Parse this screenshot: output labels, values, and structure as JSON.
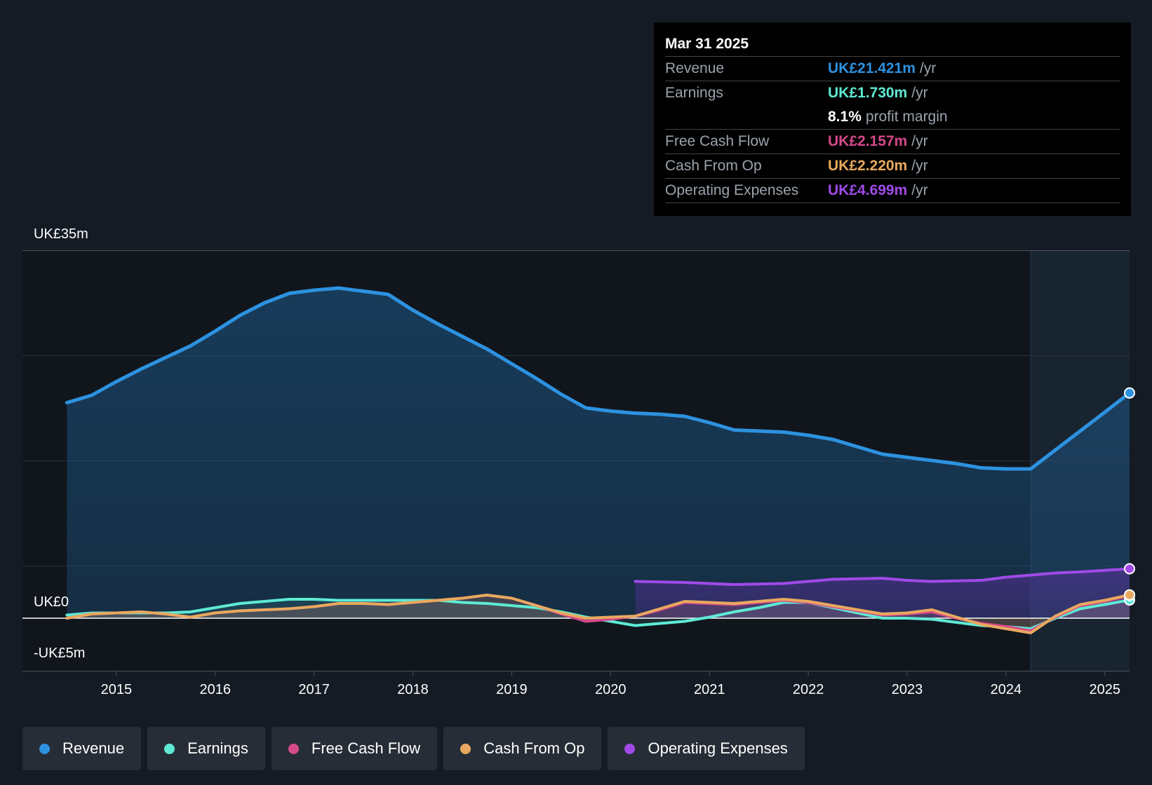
{
  "tooltip": {
    "date": "Mar 31 2025",
    "rows": [
      {
        "label": "Revenue",
        "value": "UK£21.421m",
        "unit": "/yr",
        "color": "#2d92e0"
      },
      {
        "label": "Earnings",
        "value": "UK£1.730m",
        "unit": "/yr",
        "color": "#5eead4"
      },
      {
        "label": "",
        "value": "8.1%",
        "unit": "profit margin",
        "color": "#ffffff"
      },
      {
        "label": "Free Cash Flow",
        "value": "UK£2.157m",
        "unit": "/yr",
        "color": "#d6498a"
      },
      {
        "label": "Cash From Op",
        "value": "UK£2.220m",
        "unit": "/yr",
        "color": "#e8a95e"
      },
      {
        "label": "Operating Expenses",
        "value": "UK£4.699m",
        "unit": "/yr",
        "color": "#a04ae8"
      }
    ]
  },
  "legend": [
    {
      "label": "Revenue",
      "color": "#2d92e0"
    },
    {
      "label": "Earnings",
      "color": "#5eead4"
    },
    {
      "label": "Free Cash Flow",
      "color": "#d6498a"
    },
    {
      "label": "Cash From Op",
      "color": "#e8a95e"
    },
    {
      "label": "Operating Expenses",
      "color": "#a04ae8"
    }
  ],
  "chart_data": {
    "type": "area",
    "ylim": [
      -5,
      35
    ],
    "y_tick_labels": [
      {
        "value": 35,
        "label": "UK£35m"
      },
      {
        "value": 0,
        "label": "UK£0"
      },
      {
        "value": -5,
        "label": "-UK£5m"
      }
    ],
    "x_ticks": [
      2015,
      2016,
      2017,
      2018,
      2019,
      2020,
      2021,
      2022,
      2023,
      2024,
      2025
    ],
    "x_range": [
      2014.05,
      2025.25
    ],
    "highlight_start": 2024.25,
    "series": [
      {
        "name": "Revenue",
        "color": "#2d92e0",
        "points": [
          [
            2014.5,
            20.5
          ],
          [
            2014.75,
            21.2
          ],
          [
            2015,
            22.5
          ],
          [
            2015.25,
            23.7
          ],
          [
            2015.5,
            24.8
          ],
          [
            2015.75,
            25.9
          ],
          [
            2016,
            27.3
          ],
          [
            2016.25,
            28.8
          ],
          [
            2016.5,
            30.0
          ],
          [
            2016.75,
            30.9
          ],
          [
            2017,
            31.2
          ],
          [
            2017.25,
            31.4
          ],
          [
            2017.5,
            31.1
          ],
          [
            2017.75,
            30.8
          ],
          [
            2018,
            29.3
          ],
          [
            2018.25,
            28.0
          ],
          [
            2018.5,
            26.8
          ],
          [
            2018.75,
            25.6
          ],
          [
            2019,
            24.2
          ],
          [
            2019.25,
            22.8
          ],
          [
            2019.5,
            21.3
          ],
          [
            2019.75,
            20.0
          ],
          [
            2020,
            19.7
          ],
          [
            2020.25,
            19.5
          ],
          [
            2020.5,
            19.4
          ],
          [
            2020.75,
            19.2
          ],
          [
            2021,
            18.6
          ],
          [
            2021.25,
            17.9
          ],
          [
            2021.5,
            17.8
          ],
          [
            2021.75,
            17.7
          ],
          [
            2022,
            17.4
          ],
          [
            2022.25,
            17.0
          ],
          [
            2022.5,
            16.3
          ],
          [
            2022.75,
            15.6
          ],
          [
            2023,
            15.3
          ],
          [
            2023.25,
            15.0
          ],
          [
            2023.5,
            14.7
          ],
          [
            2023.75,
            14.3
          ],
          [
            2024,
            14.2
          ],
          [
            2024.25,
            14.2
          ],
          [
            2024.5,
            16.0
          ],
          [
            2024.75,
            17.8
          ],
          [
            2025,
            19.6
          ],
          [
            2025.25,
            21.421
          ]
        ]
      },
      {
        "name": "Earnings",
        "color": "#5eead4",
        "points": [
          [
            2014.5,
            0.3
          ],
          [
            2014.75,
            0.5
          ],
          [
            2015,
            0.5
          ],
          [
            2015.25,
            0.5
          ],
          [
            2015.5,
            0.5
          ],
          [
            2015.75,
            0.6
          ],
          [
            2016,
            1.0
          ],
          [
            2016.25,
            1.4
          ],
          [
            2016.5,
            1.6
          ],
          [
            2016.75,
            1.8
          ],
          [
            2017,
            1.8
          ],
          [
            2017.25,
            1.7
          ],
          [
            2017.5,
            1.7
          ],
          [
            2017.75,
            1.7
          ],
          [
            2018,
            1.7
          ],
          [
            2018.25,
            1.7
          ],
          [
            2018.5,
            1.5
          ],
          [
            2018.75,
            1.4
          ],
          [
            2019,
            1.2
          ],
          [
            2019.25,
            1.0
          ],
          [
            2019.5,
            0.6
          ],
          [
            2019.75,
            0.1
          ],
          [
            2020,
            -0.3
          ],
          [
            2020.25,
            -0.7
          ],
          [
            2020.5,
            -0.5
          ],
          [
            2020.75,
            -0.3
          ],
          [
            2021,
            0.1
          ],
          [
            2021.25,
            0.6
          ],
          [
            2021.5,
            1.0
          ],
          [
            2021.75,
            1.5
          ],
          [
            2022,
            1.5
          ],
          [
            2022.25,
            1.0
          ],
          [
            2022.5,
            0.5
          ],
          [
            2022.75,
            0.0
          ],
          [
            2023,
            0.0
          ],
          [
            2023.25,
            -0.1
          ],
          [
            2023.5,
            -0.4
          ],
          [
            2023.75,
            -0.7
          ],
          [
            2024,
            -0.8
          ],
          [
            2024.25,
            -1.0
          ],
          [
            2024.5,
            0.0
          ],
          [
            2024.75,
            0.9
          ],
          [
            2025,
            1.3
          ],
          [
            2025.25,
            1.73
          ]
        ]
      },
      {
        "name": "Free Cash Flow",
        "color": "#d6498a",
        "points": [
          [
            2014.5,
            0.0
          ],
          [
            2014.75,
            0.4
          ],
          [
            2015,
            0.5
          ],
          [
            2015.25,
            0.6
          ],
          [
            2015.5,
            0.4
          ],
          [
            2015.75,
            0.1
          ],
          [
            2016,
            0.5
          ],
          [
            2016.25,
            0.7
          ],
          [
            2016.5,
            0.8
          ],
          [
            2016.75,
            0.9
          ],
          [
            2017,
            1.1
          ],
          [
            2017.25,
            1.4
          ],
          [
            2017.5,
            1.4
          ],
          [
            2017.75,
            1.3
          ],
          [
            2018,
            1.5
          ],
          [
            2018.25,
            1.7
          ],
          [
            2018.5,
            1.9
          ],
          [
            2018.75,
            2.2
          ],
          [
            2019,
            1.9
          ],
          [
            2019.25,
            1.2
          ],
          [
            2019.5,
            0.4
          ],
          [
            2019.75,
            -0.3
          ],
          [
            2020,
            -0.1
          ],
          [
            2020.25,
            0.2
          ],
          [
            2020.5,
            0.8
          ],
          [
            2020.75,
            1.5
          ],
          [
            2021,
            1.4
          ],
          [
            2021.25,
            1.3
          ],
          [
            2021.5,
            1.5
          ],
          [
            2021.75,
            1.7
          ],
          [
            2022,
            1.5
          ],
          [
            2022.25,
            1.1
          ],
          [
            2022.5,
            0.7
          ],
          [
            2022.75,
            0.3
          ],
          [
            2023,
            0.4
          ],
          [
            2023.25,
            0.6
          ],
          [
            2023.5,
            0.0
          ],
          [
            2023.75,
            -0.5
          ],
          [
            2024,
            -0.8
          ],
          [
            2024.25,
            -1.2
          ],
          [
            2024.5,
            0.1
          ],
          [
            2024.75,
            1.2
          ],
          [
            2025,
            1.6
          ],
          [
            2025.25,
            2.157
          ]
        ]
      },
      {
        "name": "Cash From Op",
        "color": "#e8a95e",
        "points": [
          [
            2014.5,
            0.0
          ],
          [
            2014.75,
            0.4
          ],
          [
            2015,
            0.5
          ],
          [
            2015.25,
            0.6
          ],
          [
            2015.5,
            0.4
          ],
          [
            2015.75,
            0.1
          ],
          [
            2016,
            0.5
          ],
          [
            2016.25,
            0.7
          ],
          [
            2016.5,
            0.8
          ],
          [
            2016.75,
            0.9
          ],
          [
            2017,
            1.1
          ],
          [
            2017.25,
            1.4
          ],
          [
            2017.5,
            1.4
          ],
          [
            2017.75,
            1.3
          ],
          [
            2018,
            1.5
          ],
          [
            2018.25,
            1.7
          ],
          [
            2018.5,
            1.9
          ],
          [
            2018.75,
            2.2
          ],
          [
            2019,
            1.9
          ],
          [
            2019.25,
            1.2
          ],
          [
            2019.5,
            0.5
          ],
          [
            2019.75,
            0.0
          ],
          [
            2020,
            0.1
          ],
          [
            2020.25,
            0.2
          ],
          [
            2020.5,
            0.9
          ],
          [
            2020.75,
            1.6
          ],
          [
            2021,
            1.5
          ],
          [
            2021.25,
            1.4
          ],
          [
            2021.5,
            1.6
          ],
          [
            2021.75,
            1.8
          ],
          [
            2022,
            1.6
          ],
          [
            2022.25,
            1.2
          ],
          [
            2022.5,
            0.8
          ],
          [
            2022.75,
            0.4
          ],
          [
            2023,
            0.5
          ],
          [
            2023.25,
            0.8
          ],
          [
            2023.5,
            0.1
          ],
          [
            2023.75,
            -0.6
          ],
          [
            2024,
            -1.0
          ],
          [
            2024.25,
            -1.4
          ],
          [
            2024.5,
            0.2
          ],
          [
            2024.75,
            1.3
          ],
          [
            2025,
            1.7
          ],
          [
            2025.25,
            2.22
          ]
        ]
      },
      {
        "name": "Operating Expenses",
        "color": "#a04ae8",
        "points": [
          [
            2020.25,
            3.5
          ],
          [
            2020.5,
            3.45
          ],
          [
            2020.75,
            3.4
          ],
          [
            2021,
            3.3
          ],
          [
            2021.25,
            3.2
          ],
          [
            2021.5,
            3.25
          ],
          [
            2021.75,
            3.3
          ],
          [
            2022,
            3.5
          ],
          [
            2022.25,
            3.7
          ],
          [
            2022.5,
            3.75
          ],
          [
            2022.75,
            3.8
          ],
          [
            2023,
            3.6
          ],
          [
            2023.25,
            3.5
          ],
          [
            2023.5,
            3.55
          ],
          [
            2023.75,
            3.6
          ],
          [
            2024,
            3.9
          ],
          [
            2024.25,
            4.1
          ],
          [
            2024.5,
            4.3
          ],
          [
            2024.75,
            4.4
          ],
          [
            2025,
            4.55
          ],
          [
            2025.25,
            4.699
          ]
        ]
      }
    ]
  }
}
